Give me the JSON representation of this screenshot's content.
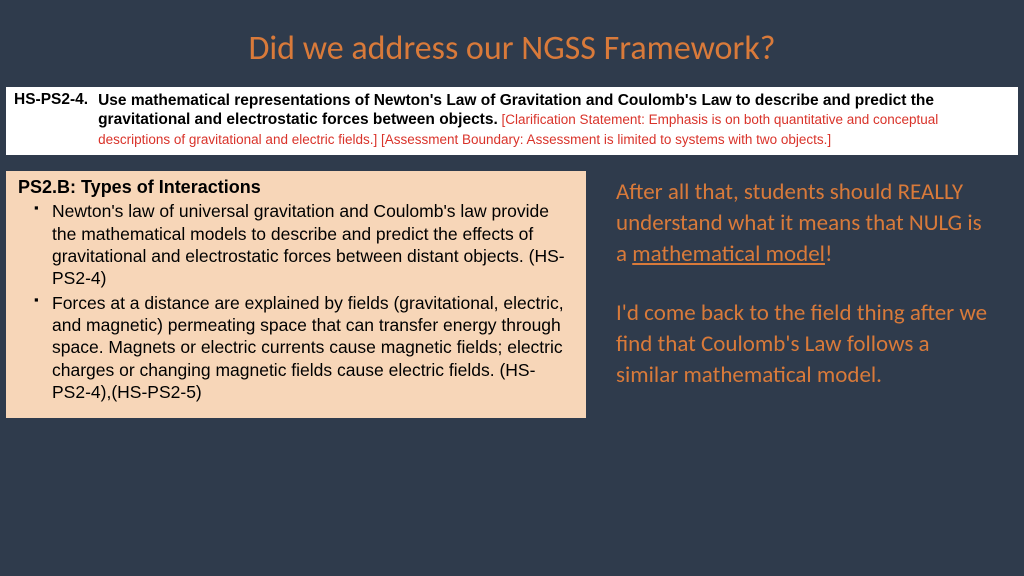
{
  "title": "Did we address our NGSS Framework?",
  "standard": {
    "code": "HS-PS2-4.",
    "bold_text": "Use mathematical representations of Newton's Law of Gravitation and Coulomb's Law to describe and predict the gravitational and electrostatic forces between objects.",
    "clarification": "  [Clarification Statement:  Emphasis is on both quantitative and conceptual descriptions of gravitational and electric fields.] [Assessment Boundary:  Assessment is limited to systems with two objects.]"
  },
  "ps2": {
    "heading": "PS2.B:  Types of Interactions",
    "bullets": [
      "Newton's law of universal gravitation and Coulomb's law provide the mathematical models to describe and predict the effects of gravitational and electrostatic forces between distant objects. (HS-PS2-4)",
      "Forces at a distance are explained by fields (gravitational, electric, and magnetic) permeating space that can transfer energy through space. Magnets or electric currents cause magnetic fields; electric charges or changing magnetic fields cause electric fields. (HS-PS2-4),(HS-PS2-5)"
    ]
  },
  "commentary": {
    "p1_a": "After all that, students should REALLY understand what it means that NULG is a ",
    "p1_underline": "mathematical model",
    "p1_b": "!",
    "p2": "I'd come back to the field thing after we find that Coulomb's Law follows a similar mathematical model."
  },
  "colors": {
    "background": "#2f3b4c",
    "accent": "#d97a3a",
    "clarification": "#d9332a",
    "ps2_bg": "#f7d6b8",
    "white": "#ffffff"
  }
}
